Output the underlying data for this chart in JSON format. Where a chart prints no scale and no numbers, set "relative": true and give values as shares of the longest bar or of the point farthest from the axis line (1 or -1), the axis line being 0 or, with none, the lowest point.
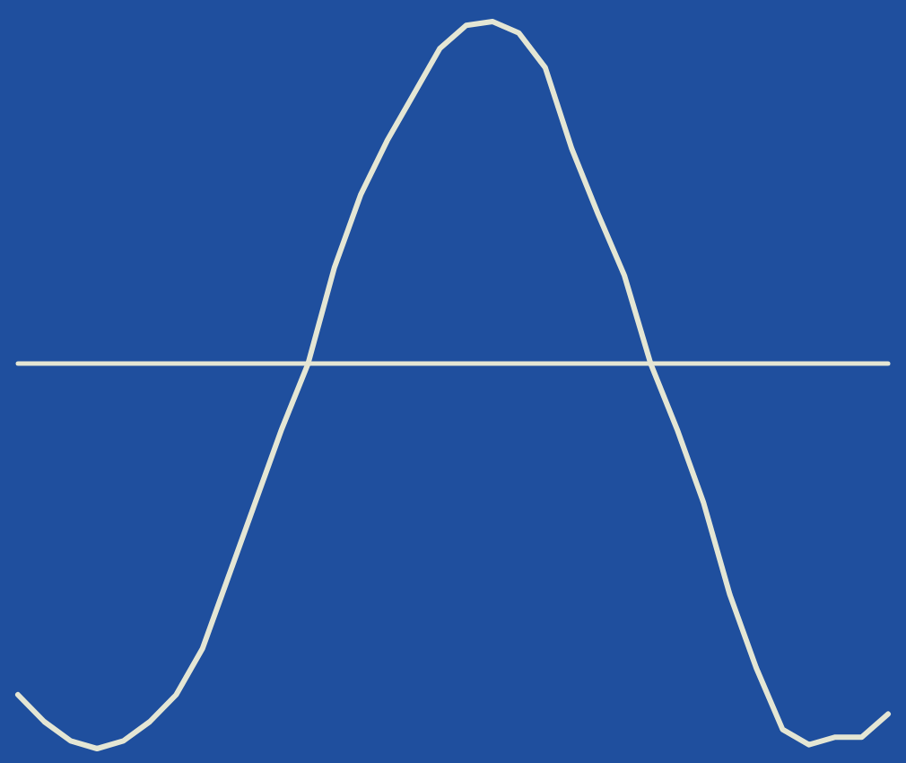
{
  "chart_data": {
    "type": "line",
    "relative": true,
    "marker": "none",
    "grid": false,
    "categories": [
      null,
      null,
      null,
      null,
      null,
      null,
      null,
      null,
      null,
      null,
      null,
      null,
      null,
      null,
      null,
      null,
      null,
      null,
      null,
      null,
      null,
      null,
      null,
      null,
      null,
      null,
      null,
      null,
      null,
      null,
      null,
      null,
      null,
      null
    ],
    "series": [
      {
        "color": "#e4e6d4",
        "values": [
          -0.86,
          -0.93,
          -0.98,
          -1,
          -0.98,
          -0.93,
          -0.86,
          -0.74,
          -0.55,
          -0.36,
          -0.17,
          0,
          0.25,
          0.44,
          0.58,
          0.7,
          0.82,
          0.88,
          0.89,
          0.86,
          0.77,
          0.56,
          0.39,
          0.23,
          0,
          -0.17,
          -0.36,
          -0.6,
          -0.79,
          -0.95,
          -0.99,
          -0.97,
          -0.97,
          -0.91
        ]
      }
    ]
  }
}
